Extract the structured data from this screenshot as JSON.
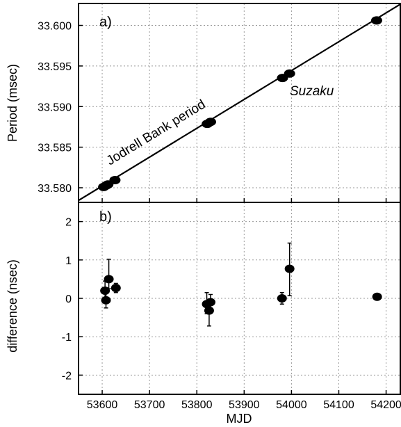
{
  "chart_data": [
    {
      "panel_label": "a)",
      "type": "scatter",
      "xlabel": "",
      "ylabel": "Period (msec)",
      "xlim": [
        53550,
        54230
      ],
      "ylim": [
        33.5782,
        33.6027
      ],
      "yticks": [
        33.58,
        33.585,
        33.59,
        33.595,
        33.6
      ],
      "ytick_labels": [
        "33.580",
        "33.585",
        "33.590",
        "33.595",
        "33.600"
      ],
      "grid": true,
      "annotations": {
        "line_label": "Jodrell Bank period",
        "points_label": "Suzaku"
      },
      "line": {
        "x": [
          53550,
          54230
        ],
        "y": [
          33.57844,
          33.60261
        ]
      },
      "series": [
        {
          "x": [
            53603,
            53608,
            53612,
            53627,
            53822,
            53829,
            53981,
            53996,
            54180
          ],
          "y": [
            33.5801,
            33.58027,
            33.58041,
            33.58094,
            33.58787,
            33.58812,
            33.59352,
            33.59407,
            33.60061
          ]
        }
      ]
    },
    {
      "panel_label": "b)",
      "type": "scatter",
      "xlabel": "MJD",
      "ylabel": "difference (nsec)",
      "xlim": [
        53550,
        54230
      ],
      "ylim": [
        -2.5,
        2.5
      ],
      "xticks": [
        53600,
        53700,
        53800,
        53900,
        54000,
        54100,
        54200
      ],
      "xtick_labels": [
        "53600",
        "53700",
        "53800",
        "53900",
        "54000",
        "54100",
        "54200"
      ],
      "yticks": [
        2,
        1,
        0,
        -1,
        -2
      ],
      "ytick_labels": [
        "2",
        "1",
        "0",
        "-1",
        "-2"
      ],
      "grid": true,
      "series": [
        {
          "x": [
            53606,
            53608,
            53614,
            53629,
            53821,
            53826,
            53829,
            53980,
            53996,
            54181
          ],
          "y": [
            0.2,
            -0.05,
            0.5,
            0.27,
            -0.15,
            -0.32,
            -0.1,
            0.0,
            0.77,
            0.04
          ],
          "yerr_low": [
            0.25,
            0.2,
            0.25,
            0.12,
            0.25,
            0.4,
            0.2,
            0.15,
            0.7,
            0.0
          ],
          "yerr_high": [
            0.25,
            0.2,
            0.52,
            0.12,
            0.3,
            0.25,
            0.2,
            0.15,
            0.67,
            0.0
          ]
        }
      ]
    }
  ]
}
